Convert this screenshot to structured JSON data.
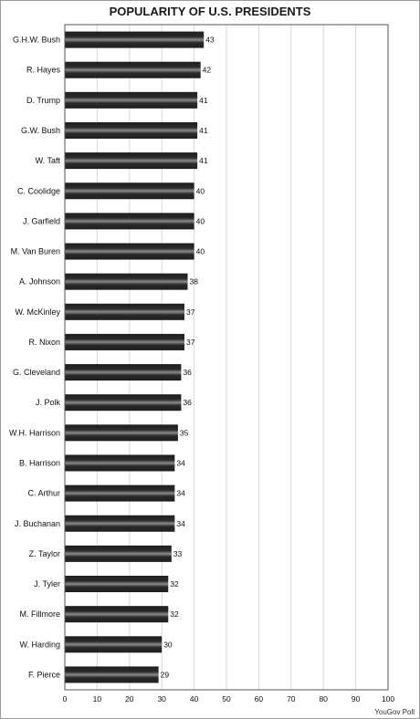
{
  "chart_data": {
    "type": "bar",
    "orientation": "horizontal",
    "title": "POPULARITY OF U.S. PRESIDENTS",
    "source": "YouGov Poll",
    "categories": [
      "G.H.W. Bush",
      "R. Hayes",
      "D. Trump",
      "G.W. Bush",
      "W. Taft",
      "C. Coolidge",
      "J. Garfield",
      "M. Van Buren",
      "A. Johnson",
      "W. McKinley",
      "R. Nixon",
      "G. Cleveland",
      "J. Polk",
      "W.H. Harrison",
      "B. Harrison",
      "C. Arthur",
      "J. Buchanan",
      "Z. Taylor",
      "J. Tyler",
      "M. Fillmore",
      "W. Harding",
      "F. Pierce"
    ],
    "values": [
      43,
      42,
      41,
      41,
      41,
      40,
      40,
      40,
      38,
      37,
      37,
      36,
      36,
      35,
      34,
      34,
      34,
      33,
      32,
      32,
      30,
      29
    ],
    "xlim": [
      0,
      100
    ],
    "xticks": [
      0,
      10,
      20,
      30,
      40,
      50,
      60,
      70,
      80,
      90,
      100
    ],
    "xlabel": "",
    "ylabel": "",
    "grid": true,
    "bar_color": "#1e1e1e",
    "bar_highlight_color": "#8a8a8a",
    "grid_color": "#d9d9d9"
  }
}
